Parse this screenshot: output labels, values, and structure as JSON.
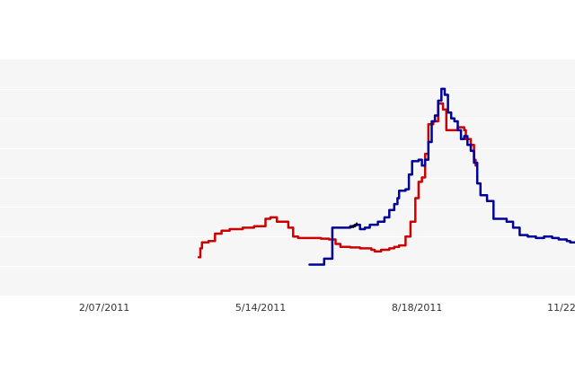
{
  "chart_data": {
    "type": "line",
    "x_axis_type": "date",
    "x_ticks": [
      {
        "label": "2/07/2011",
        "date": "2011-02-07"
      },
      {
        "label": "5/14/2011",
        "date": "2011-05-14"
      },
      {
        "label": "8/18/2011",
        "date": "2011-08-18"
      },
      {
        "label": "11/22",
        "date": "2011-11-22"
      }
    ],
    "x_range": [
      "2010-12-05",
      "2011-11-23"
    ],
    "y_range": [
      0,
      8
    ],
    "y_grid": [
      1,
      2,
      3,
      4,
      5,
      6,
      7
    ],
    "grid": true,
    "legend": "none",
    "background_color": "#f6f6f6",
    "gridline_color": "#ffffff",
    "series": [
      {
        "color": "#cc0000",
        "step": true,
        "points": [
          [
            "2011-04-06",
            1.3
          ],
          [
            "2011-04-07",
            1.6
          ],
          [
            "2011-04-08",
            1.8
          ],
          [
            "2011-04-12",
            1.85
          ],
          [
            "2011-04-16",
            2.1
          ],
          [
            "2011-04-20",
            2.2
          ],
          [
            "2011-04-25",
            2.25
          ],
          [
            "2011-05-03",
            2.3
          ],
          [
            "2011-05-10",
            2.35
          ],
          [
            "2011-05-17",
            2.6
          ],
          [
            "2011-05-20",
            2.65
          ],
          [
            "2011-05-24",
            2.5
          ],
          [
            "2011-05-31",
            2.3
          ],
          [
            "2011-06-03",
            2.0
          ],
          [
            "2011-06-06",
            1.95
          ],
          [
            "2011-06-14",
            1.95
          ],
          [
            "2011-06-20",
            1.93
          ],
          [
            "2011-06-25",
            1.9
          ],
          [
            "2011-06-29",
            1.75
          ],
          [
            "2011-07-02",
            1.65
          ],
          [
            "2011-07-08",
            1.63
          ],
          [
            "2011-07-14",
            1.6
          ],
          [
            "2011-07-21",
            1.55
          ],
          [
            "2011-07-23",
            1.5
          ],
          [
            "2011-07-27",
            1.55
          ],
          [
            "2011-08-01",
            1.6
          ],
          [
            "2011-08-04",
            1.65
          ],
          [
            "2011-08-07",
            1.7
          ],
          [
            "2011-08-11",
            2.0
          ],
          [
            "2011-08-14",
            2.5
          ],
          [
            "2011-08-17",
            3.3
          ],
          [
            "2011-08-19",
            3.85
          ],
          [
            "2011-08-21",
            4.0
          ],
          [
            "2011-08-23",
            4.8
          ],
          [
            "2011-08-25",
            5.8
          ],
          [
            "2011-08-28",
            5.9
          ],
          [
            "2011-08-31",
            6.5
          ],
          [
            "2011-09-03",
            6.3
          ],
          [
            "2011-09-05",
            5.6
          ],
          [
            "2011-09-08",
            5.6
          ],
          [
            "2011-09-12",
            5.7
          ],
          [
            "2011-09-16",
            5.6
          ],
          [
            "2011-09-17",
            5.3
          ],
          [
            "2011-09-20",
            5.1
          ],
          [
            "2011-09-22",
            4.6
          ],
          [
            "2011-09-23",
            4.4
          ]
        ]
      },
      {
        "color": "#000099",
        "step": true,
        "points": [
          [
            "2011-06-13",
            1.05
          ],
          [
            "2011-06-20",
            1.05
          ],
          [
            "2011-06-22",
            1.25
          ],
          [
            "2011-06-25",
            1.25
          ],
          [
            "2011-06-27",
            2.3
          ],
          [
            "2011-07-03",
            2.3
          ],
          [
            "2011-07-08",
            2.35
          ],
          [
            "2011-07-11",
            2.4
          ],
          [
            "2011-07-14",
            2.25
          ],
          [
            "2011-07-17",
            2.3
          ],
          [
            "2011-07-20",
            2.4
          ],
          [
            "2011-07-25",
            2.5
          ],
          [
            "2011-07-29",
            2.65
          ],
          [
            "2011-08-01",
            2.9
          ],
          [
            "2011-08-04",
            3.1
          ],
          [
            "2011-08-06",
            3.3
          ],
          [
            "2011-08-07",
            3.55
          ],
          [
            "2011-08-11",
            3.6
          ],
          [
            "2011-08-13",
            4.1
          ],
          [
            "2011-08-15",
            4.55
          ],
          [
            "2011-08-19",
            4.6
          ],
          [
            "2011-08-21",
            4.4
          ],
          [
            "2011-08-23",
            4.6
          ],
          [
            "2011-08-25",
            5.2
          ],
          [
            "2011-08-27",
            5.9
          ],
          [
            "2011-08-29",
            6.1
          ],
          [
            "2011-08-31",
            6.6
          ],
          [
            "2011-09-02",
            7.0
          ],
          [
            "2011-09-04",
            6.8
          ],
          [
            "2011-09-06",
            6.2
          ],
          [
            "2011-09-08",
            6.0
          ],
          [
            "2011-09-10",
            5.9
          ],
          [
            "2011-09-12",
            5.6
          ],
          [
            "2011-09-14",
            5.3
          ],
          [
            "2011-09-16",
            5.4
          ],
          [
            "2011-09-18",
            5.1
          ],
          [
            "2011-09-20",
            4.9
          ],
          [
            "2011-09-22",
            4.5
          ],
          [
            "2011-09-24",
            3.8
          ],
          [
            "2011-09-26",
            3.4
          ],
          [
            "2011-09-30",
            3.2
          ],
          [
            "2011-10-04",
            2.6
          ],
          [
            "2011-10-08",
            2.6
          ],
          [
            "2011-10-12",
            2.5
          ],
          [
            "2011-10-16",
            2.3
          ],
          [
            "2011-10-20",
            2.05
          ],
          [
            "2011-10-25",
            2.0
          ],
          [
            "2011-10-30",
            1.95
          ],
          [
            "2011-11-04",
            2.0
          ],
          [
            "2011-11-09",
            1.95
          ],
          [
            "2011-11-13",
            1.9
          ],
          [
            "2011-11-18",
            1.85
          ],
          [
            "2011-11-20",
            1.8
          ],
          [
            "2011-11-23",
            1.8
          ]
        ]
      },
      {
        "color": "#000000",
        "step": true,
        "points": [
          [
            "2011-07-08",
            2.32
          ],
          [
            "2011-07-10",
            2.38
          ],
          [
            "2011-07-12",
            2.45
          ]
        ]
      }
    ]
  }
}
